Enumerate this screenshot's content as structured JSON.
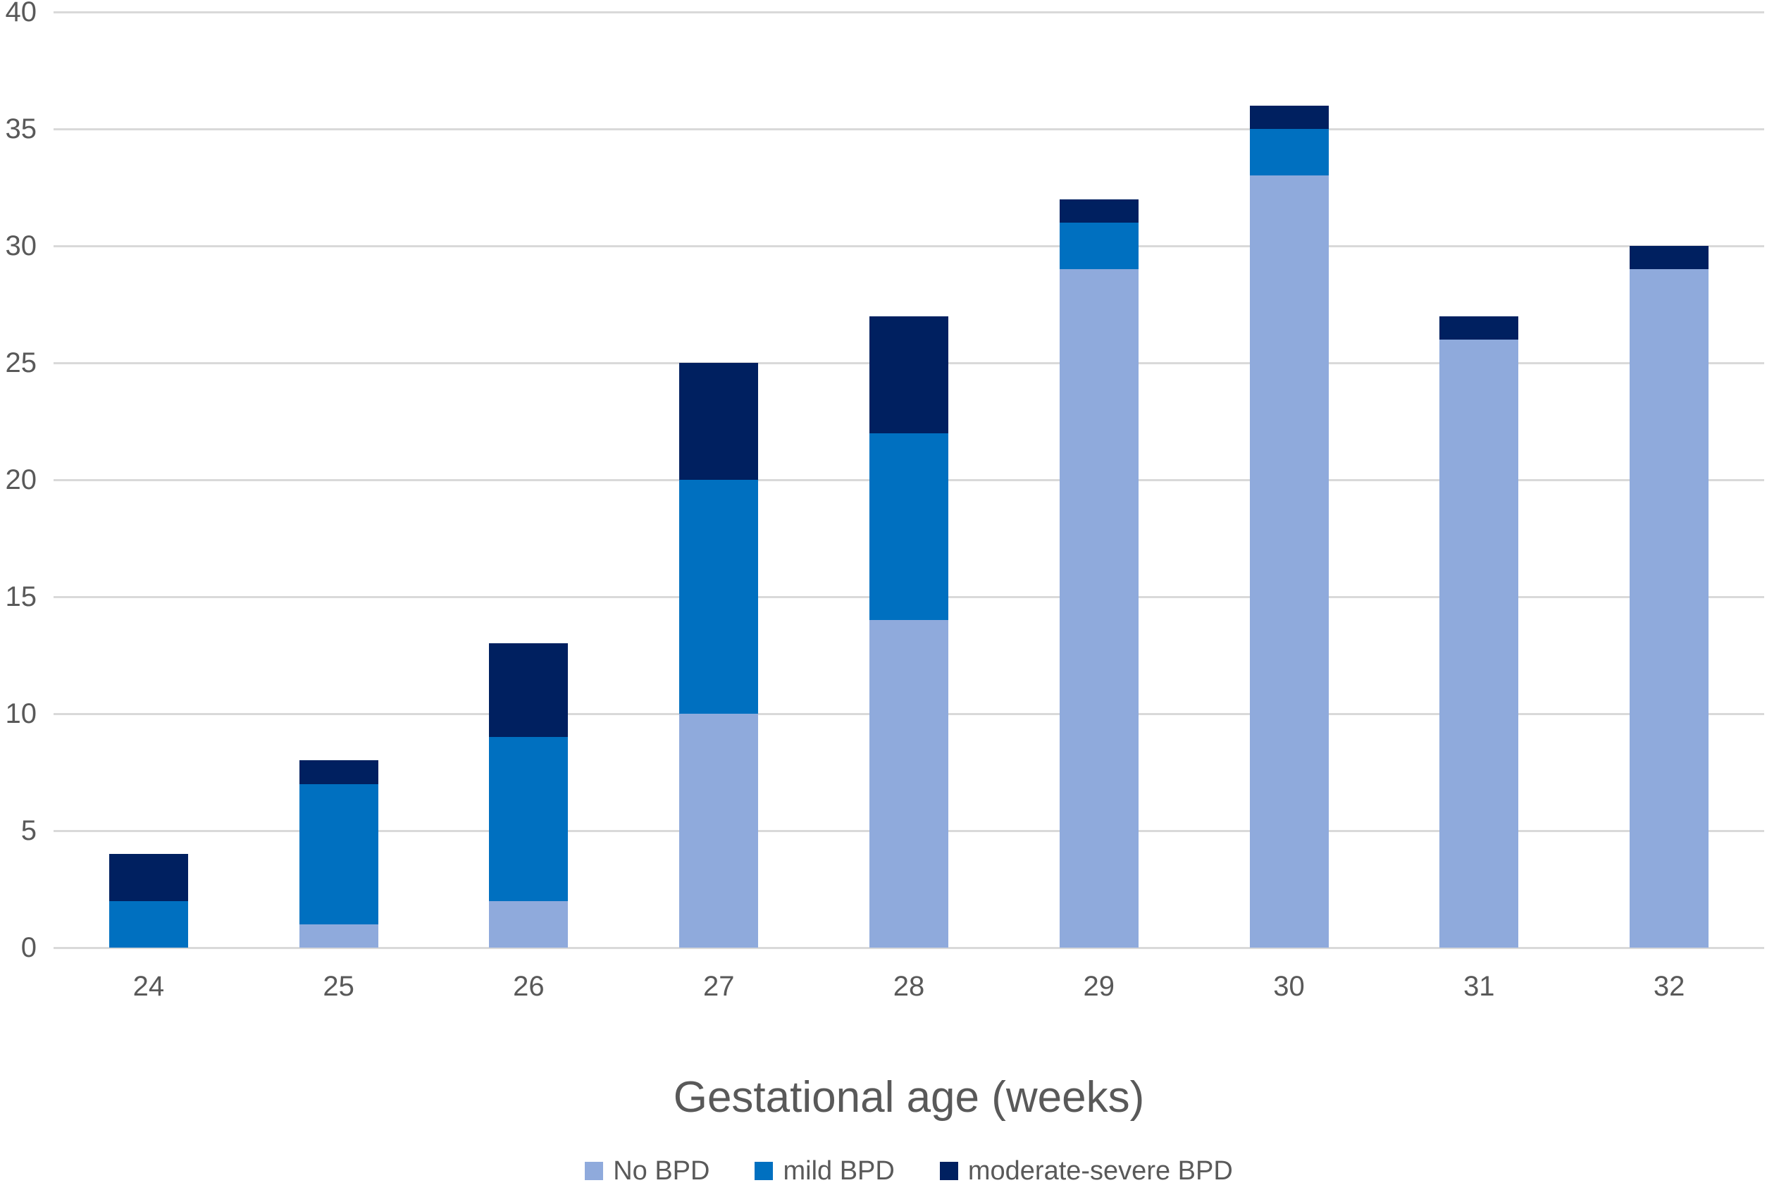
{
  "chart_data": {
    "type": "bar",
    "stacked": true,
    "orientation": "vertical",
    "title": "",
    "xlabel": "Gestational age (weeks)",
    "ylabel": "",
    "categories": [
      "24",
      "25",
      "26",
      "27",
      "28",
      "29",
      "30",
      "31",
      "32"
    ],
    "series": [
      {
        "name": "No BPD",
        "color": "#8FAADC",
        "values": [
          0,
          1,
          2,
          10,
          14,
          29,
          33,
          26,
          29
        ]
      },
      {
        "name": "mild BPD",
        "color": "#0070C0",
        "values": [
          2,
          6,
          7,
          10,
          8,
          2,
          2,
          0,
          0
        ]
      },
      {
        "name": "moderate-severe BPD",
        "color": "#002060",
        "values": [
          2,
          1,
          4,
          5,
          5,
          1,
          1,
          1,
          1
        ]
      }
    ],
    "bar_totals": [
      4,
      8,
      13,
      25,
      27,
      32,
      36,
      27,
      30
    ],
    "ylim": [
      0,
      40
    ],
    "yticks": [
      0,
      5,
      10,
      15,
      20,
      25,
      30,
      35,
      40
    ],
    "grid": "horizontal-only",
    "gridline_color": "#D9D9D9",
    "axis_text_color": "#595959",
    "background": "#FFFFFF",
    "legend_position": "bottom"
  }
}
